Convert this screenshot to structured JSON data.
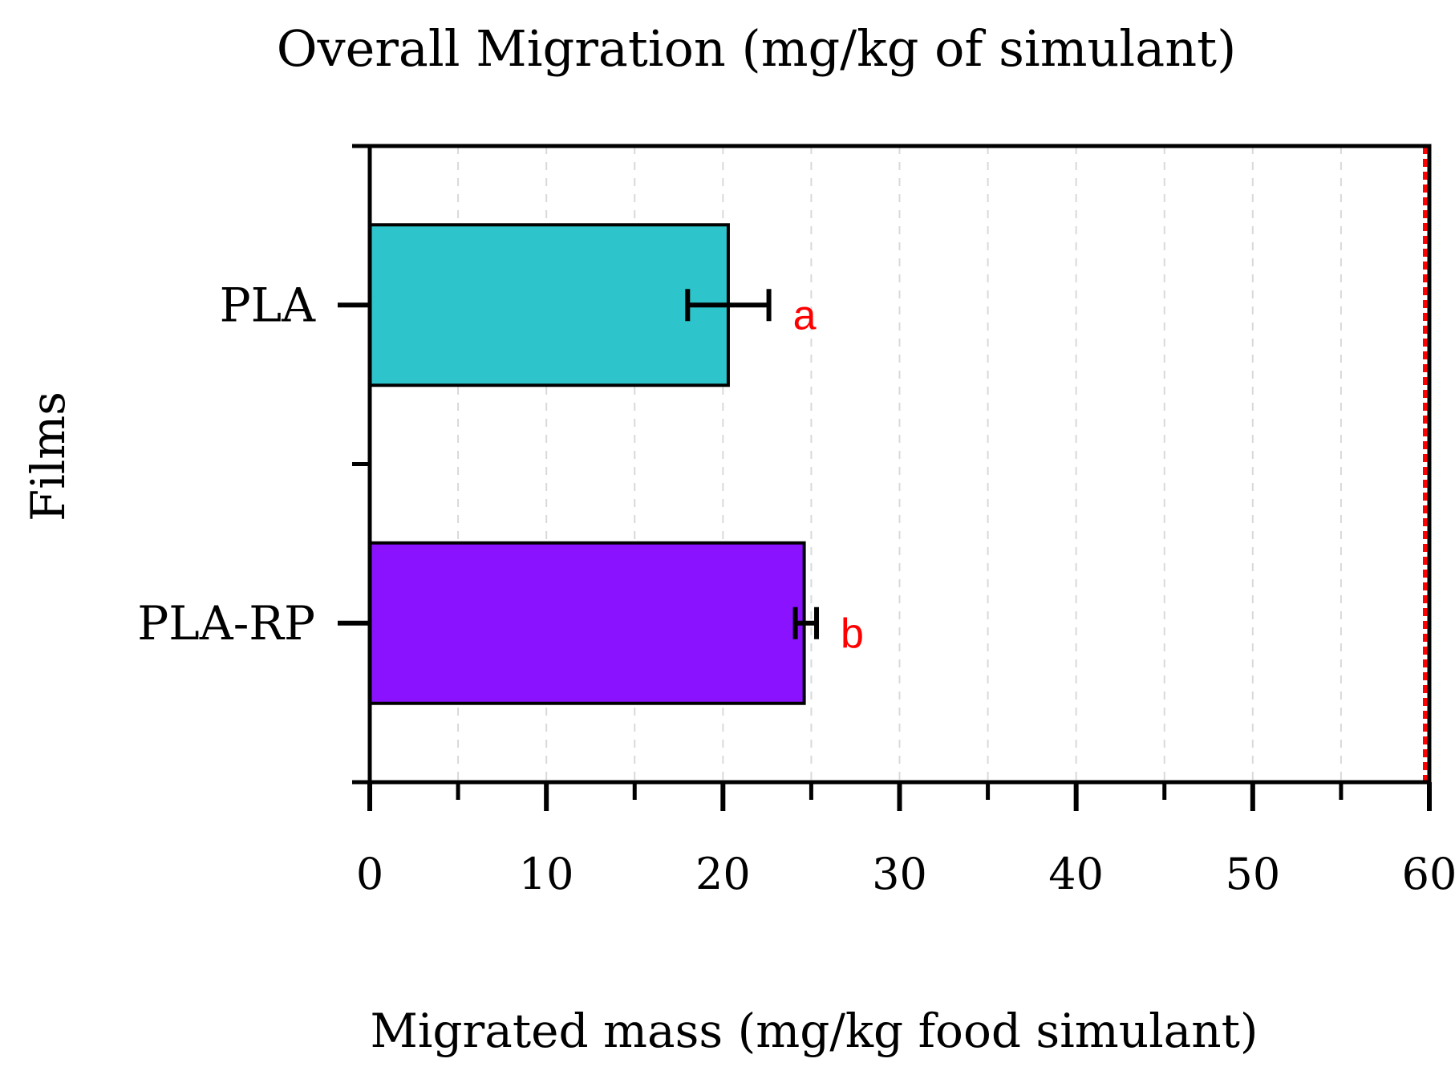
{
  "chart_data": {
    "type": "bar",
    "orientation": "horizontal",
    "title": "Overall Migration (mg/kg of simulant)",
    "xlabel": "Migrated mass (mg/kg food simulant)",
    "ylabel": "Films",
    "xlim": [
      0,
      60
    ],
    "x_ticks": [
      "0",
      "10",
      "20",
      "30",
      "40",
      "50",
      "60"
    ],
    "x_minor_tick_step": 5,
    "grid": "vertical dashed at every 5 units",
    "categories": [
      "PLA",
      "PLA-RP"
    ],
    "values": [
      20.3,
      24.6
    ],
    "error_low": [
      18.0,
      24.1
    ],
    "error_high": [
      22.6,
      25.3
    ],
    "significance_letters": [
      "a",
      "b"
    ],
    "bar_colors": [
      "#2EC4CB",
      "#8A12FF"
    ],
    "limit_line": {
      "x": 60,
      "style": "dotted",
      "color": "#FF0000"
    },
    "letter_color": "#FF0000",
    "legend": "none"
  }
}
